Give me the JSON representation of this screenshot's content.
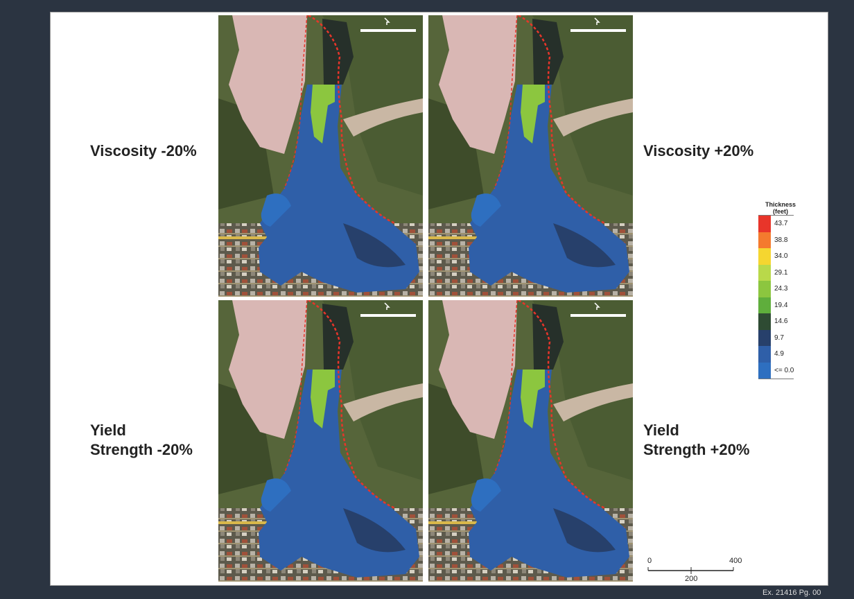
{
  "panels": [
    {
      "label_lines": [
        "Viscosity -20%"
      ]
    },
    {
      "label_lines": [
        "Viscosity +20%"
      ]
    },
    {
      "label_lines": [
        "Yield",
        "Strength -20%"
      ]
    },
    {
      "label_lines": [
        "Yield",
        "Strength +20%"
      ]
    }
  ],
  "legend": {
    "title_lines": [
      "Thickness",
      "(feet)"
    ],
    "items": [
      {
        "label": "43.7",
        "color": "#e8352a"
      },
      {
        "label": "38.8",
        "color": "#f47a2e"
      },
      {
        "label": "34.0",
        "color": "#f5d630"
      },
      {
        "label": "29.1",
        "color": "#b9d94a"
      },
      {
        "label": "24.3",
        "color": "#8cc63f"
      },
      {
        "label": "19.4",
        "color": "#5fae3c"
      },
      {
        "label": "14.6",
        "color": "#2e4b33"
      },
      {
        "label": "9.7",
        "color": "#27406b"
      },
      {
        "label": "4.9",
        "color": "#2f5fa8"
      },
      {
        "label": "<= 0.0",
        "color": "#2e6fc0"
      }
    ]
  },
  "scale_bar": {
    "start": "0",
    "end": "400",
    "mid": "200"
  },
  "footer": "Ex. 21416 Pg. 00"
}
